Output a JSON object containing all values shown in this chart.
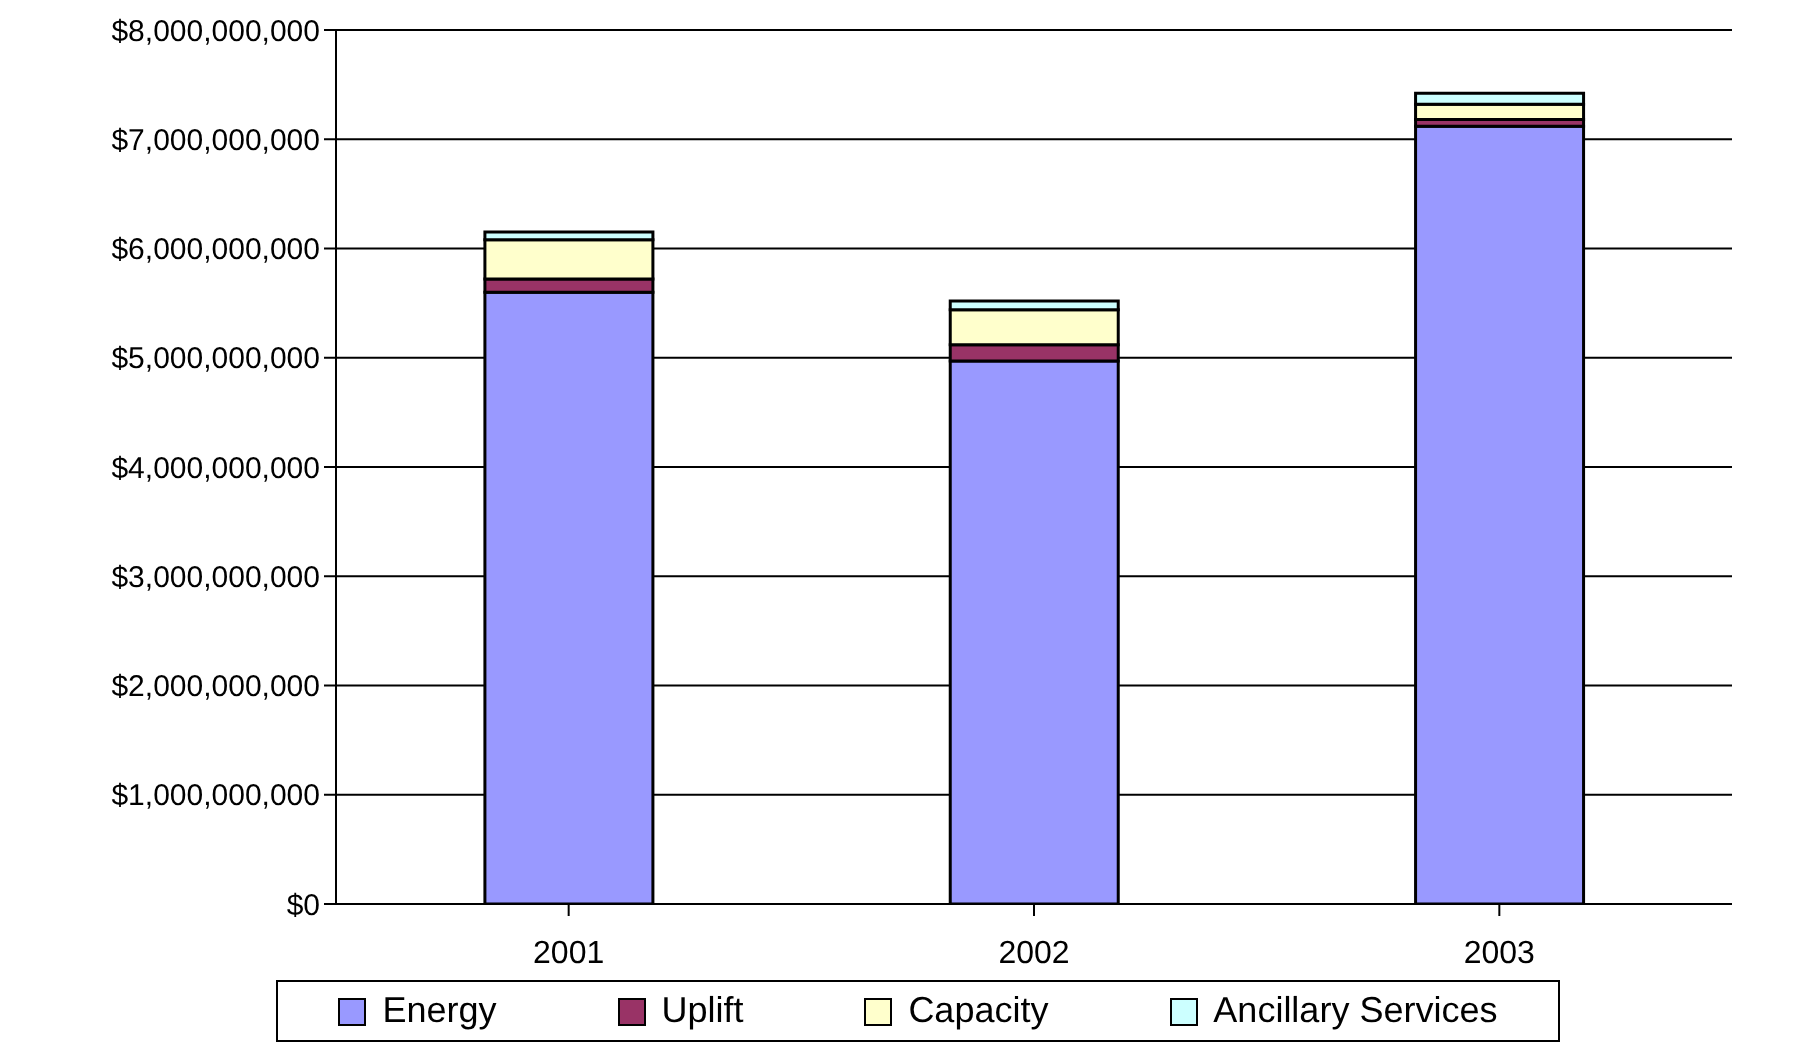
{
  "chart_data": {
    "type": "bar",
    "stacked": true,
    "categories": [
      "2001",
      "2002",
      "2003"
    ],
    "series": [
      {
        "name": "Energy",
        "color": "#9999ff",
        "values": [
          5600000000,
          4970000000,
          7120000000
        ]
      },
      {
        "name": "Uplift",
        "color": "#993366",
        "values": [
          120000000,
          150000000,
          60000000
        ]
      },
      {
        "name": "Capacity",
        "color": "#ffffcc",
        "values": [
          360000000,
          320000000,
          140000000
        ]
      },
      {
        "name": "Ancillary Services",
        "color": "#ccffff",
        "values": [
          70000000,
          80000000,
          100000000
        ]
      }
    ],
    "ylim": [
      0,
      8000000000
    ],
    "yticks": [
      {
        "value": 0,
        "label": "$0"
      },
      {
        "value": 1000000000,
        "label": "$1,000,000,000"
      },
      {
        "value": 2000000000,
        "label": "$2,000,000,000"
      },
      {
        "value": 3000000000,
        "label": "$3,000,000,000"
      },
      {
        "value": 4000000000,
        "label": "$4,000,000,000"
      },
      {
        "value": 5000000000,
        "label": "$5,000,000,000"
      },
      {
        "value": 6000000000,
        "label": "$6,000,000,000"
      },
      {
        "value": 7000000000,
        "label": "$7,000,000,000"
      },
      {
        "value": 8000000000,
        "label": "$8,000,000,000"
      }
    ],
    "grid": "y",
    "legend": "bottom"
  }
}
